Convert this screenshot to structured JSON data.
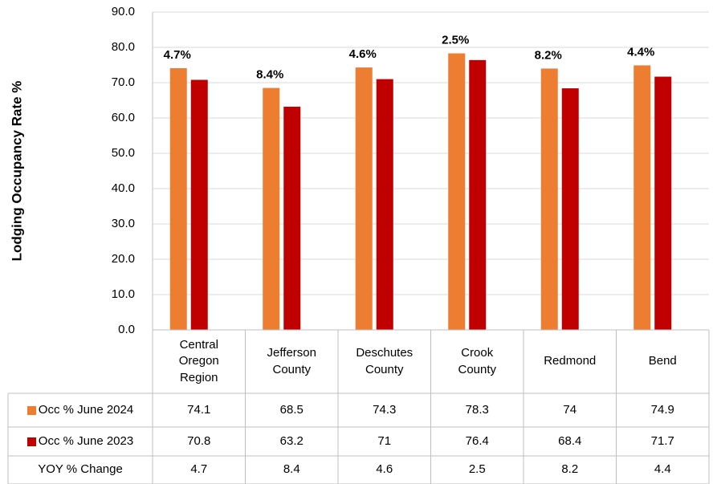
{
  "chart_data": {
    "type": "bar",
    "y_label": "Lodging Occupancy Rate %",
    "categories": [
      "Central Oregon Region",
      "Jefferson County",
      "Deschutes County",
      "Crook County",
      "Redmond",
      "Bend"
    ],
    "series": [
      {
        "name": "Occ % June 2024",
        "color": "#ED7D31",
        "values": [
          74.1,
          68.5,
          74.3,
          78.3,
          74.0,
          74.9
        ]
      },
      {
        "name": "Occ % June 2023",
        "color": "#C00000",
        "values": [
          70.8,
          63.2,
          71.0,
          76.4,
          68.4,
          71.7
        ]
      },
      {
        "name": "YOY % Change",
        "values": [
          4.7,
          8.4,
          4.6,
          2.5,
          8.2,
          4.4
        ],
        "value_labels": [
          "4.7%",
          "8.4%",
          "4.6%",
          "2.5%",
          "8.2%",
          "4.4%"
        ]
      }
    ],
    "ylim": [
      0,
      90
    ],
    "yticks": [
      {
        "value": 0,
        "label": "0.0"
      },
      {
        "value": 10,
        "label": "10.0"
      },
      {
        "value": 20,
        "label": "20.0"
      },
      {
        "value": 30,
        "label": "30.0"
      },
      {
        "value": 40,
        "label": "40.0"
      },
      {
        "value": 50,
        "label": "50.0"
      },
      {
        "value": 60,
        "label": "60.0"
      },
      {
        "value": 70,
        "label": "70.0"
      },
      {
        "value": 80,
        "label": "80.0"
      },
      {
        "value": 90,
        "label": "90.0"
      }
    ],
    "grid": true
  }
}
